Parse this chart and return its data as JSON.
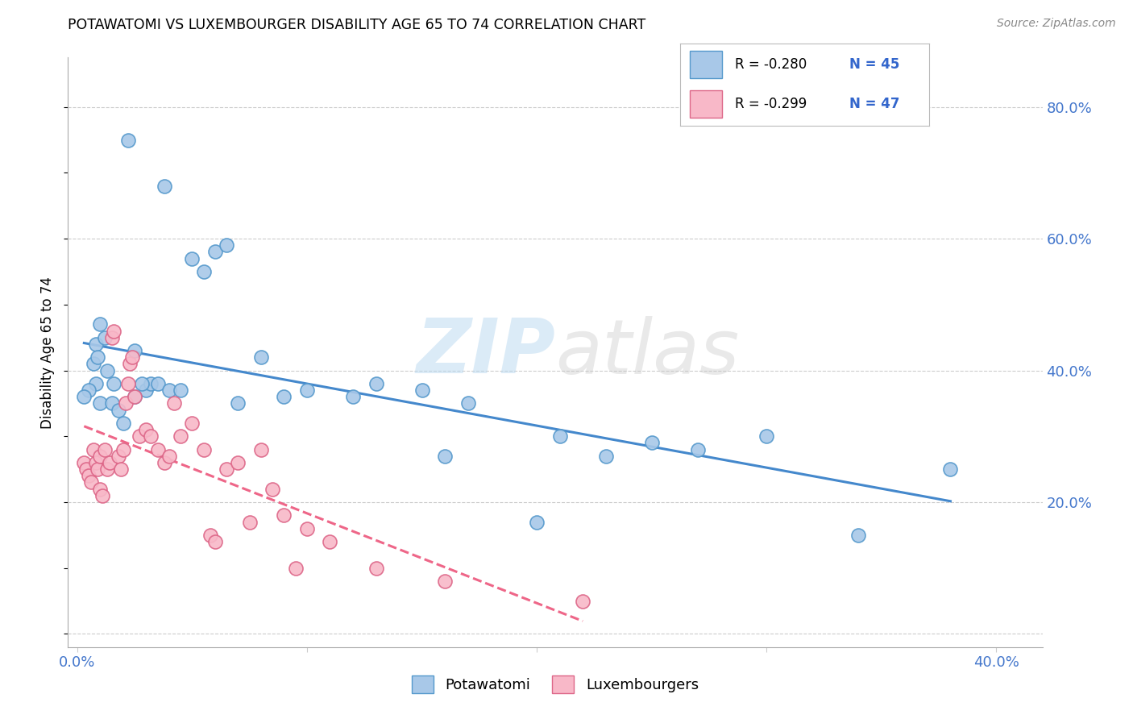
{
  "title": "POTAWATOMI VS LUXEMBOURGER DISABILITY AGE 65 TO 74 CORRELATION CHART",
  "source": "Source: ZipAtlas.com",
  "ylabel": "Disability Age 65 to 74",
  "legend1_label": "Potawatomi",
  "legend2_label": "Luxembourgers",
  "r1": -0.28,
  "n1": 45,
  "r2": -0.299,
  "n2": 47,
  "xlim": [
    -0.004,
    0.42
  ],
  "ylim": [
    -0.02,
    0.875
  ],
  "xtick_positions": [
    0.0,
    0.1,
    0.2,
    0.3,
    0.4
  ],
  "xtick_labels": [
    "0.0%",
    "",
    "",
    "",
    "40.0%"
  ],
  "ytick_positions": [
    0.0,
    0.2,
    0.4,
    0.6,
    0.8
  ],
  "ytick_labels": [
    "",
    "20.0%",
    "40.0%",
    "60.0%",
    "80.0%"
  ],
  "color_blue": "#a8c8e8",
  "color_blue_edge": "#5599cc",
  "color_blue_line": "#4488cc",
  "color_pink": "#f8b8c8",
  "color_pink_edge": "#dd6688",
  "color_pink_line": "#ee6688",
  "watermark_zip": "ZIP",
  "watermark_atlas": "atlas",
  "blue_scatter_x": [
    0.022,
    0.038,
    0.008,
    0.01,
    0.012,
    0.008,
    0.005,
    0.003,
    0.01,
    0.015,
    0.018,
    0.02,
    0.025,
    0.03,
    0.032,
    0.055,
    0.05,
    0.06,
    0.065,
    0.035,
    0.04,
    0.08,
    0.1,
    0.13,
    0.15,
    0.17,
    0.21,
    0.23,
    0.25,
    0.27,
    0.3,
    0.34,
    0.38,
    0.007,
    0.009,
    0.013,
    0.016,
    0.025,
    0.028,
    0.045,
    0.07,
    0.09,
    0.12,
    0.16,
    0.2
  ],
  "blue_scatter_y": [
    0.75,
    0.68,
    0.44,
    0.47,
    0.45,
    0.38,
    0.37,
    0.36,
    0.35,
    0.35,
    0.34,
    0.32,
    0.43,
    0.37,
    0.38,
    0.55,
    0.57,
    0.58,
    0.59,
    0.38,
    0.37,
    0.42,
    0.37,
    0.38,
    0.37,
    0.35,
    0.3,
    0.27,
    0.29,
    0.28,
    0.3,
    0.15,
    0.25,
    0.41,
    0.42,
    0.4,
    0.38,
    0.36,
    0.38,
    0.37,
    0.35,
    0.36,
    0.36,
    0.27,
    0.17
  ],
  "pink_scatter_x": [
    0.003,
    0.004,
    0.005,
    0.006,
    0.007,
    0.008,
    0.009,
    0.01,
    0.01,
    0.011,
    0.012,
    0.013,
    0.014,
    0.015,
    0.016,
    0.018,
    0.019,
    0.02,
    0.021,
    0.022,
    0.023,
    0.024,
    0.025,
    0.027,
    0.03,
    0.032,
    0.035,
    0.038,
    0.04,
    0.042,
    0.045,
    0.05,
    0.055,
    0.058,
    0.06,
    0.065,
    0.07,
    0.075,
    0.08,
    0.085,
    0.09,
    0.095,
    0.1,
    0.11,
    0.13,
    0.16,
    0.22
  ],
  "pink_scatter_y": [
    0.26,
    0.25,
    0.24,
    0.23,
    0.28,
    0.26,
    0.25,
    0.27,
    0.22,
    0.21,
    0.28,
    0.25,
    0.26,
    0.45,
    0.46,
    0.27,
    0.25,
    0.28,
    0.35,
    0.38,
    0.41,
    0.42,
    0.36,
    0.3,
    0.31,
    0.3,
    0.28,
    0.26,
    0.27,
    0.35,
    0.3,
    0.32,
    0.28,
    0.15,
    0.14,
    0.25,
    0.26,
    0.17,
    0.28,
    0.22,
    0.18,
    0.1,
    0.16,
    0.14,
    0.1,
    0.08,
    0.05
  ]
}
